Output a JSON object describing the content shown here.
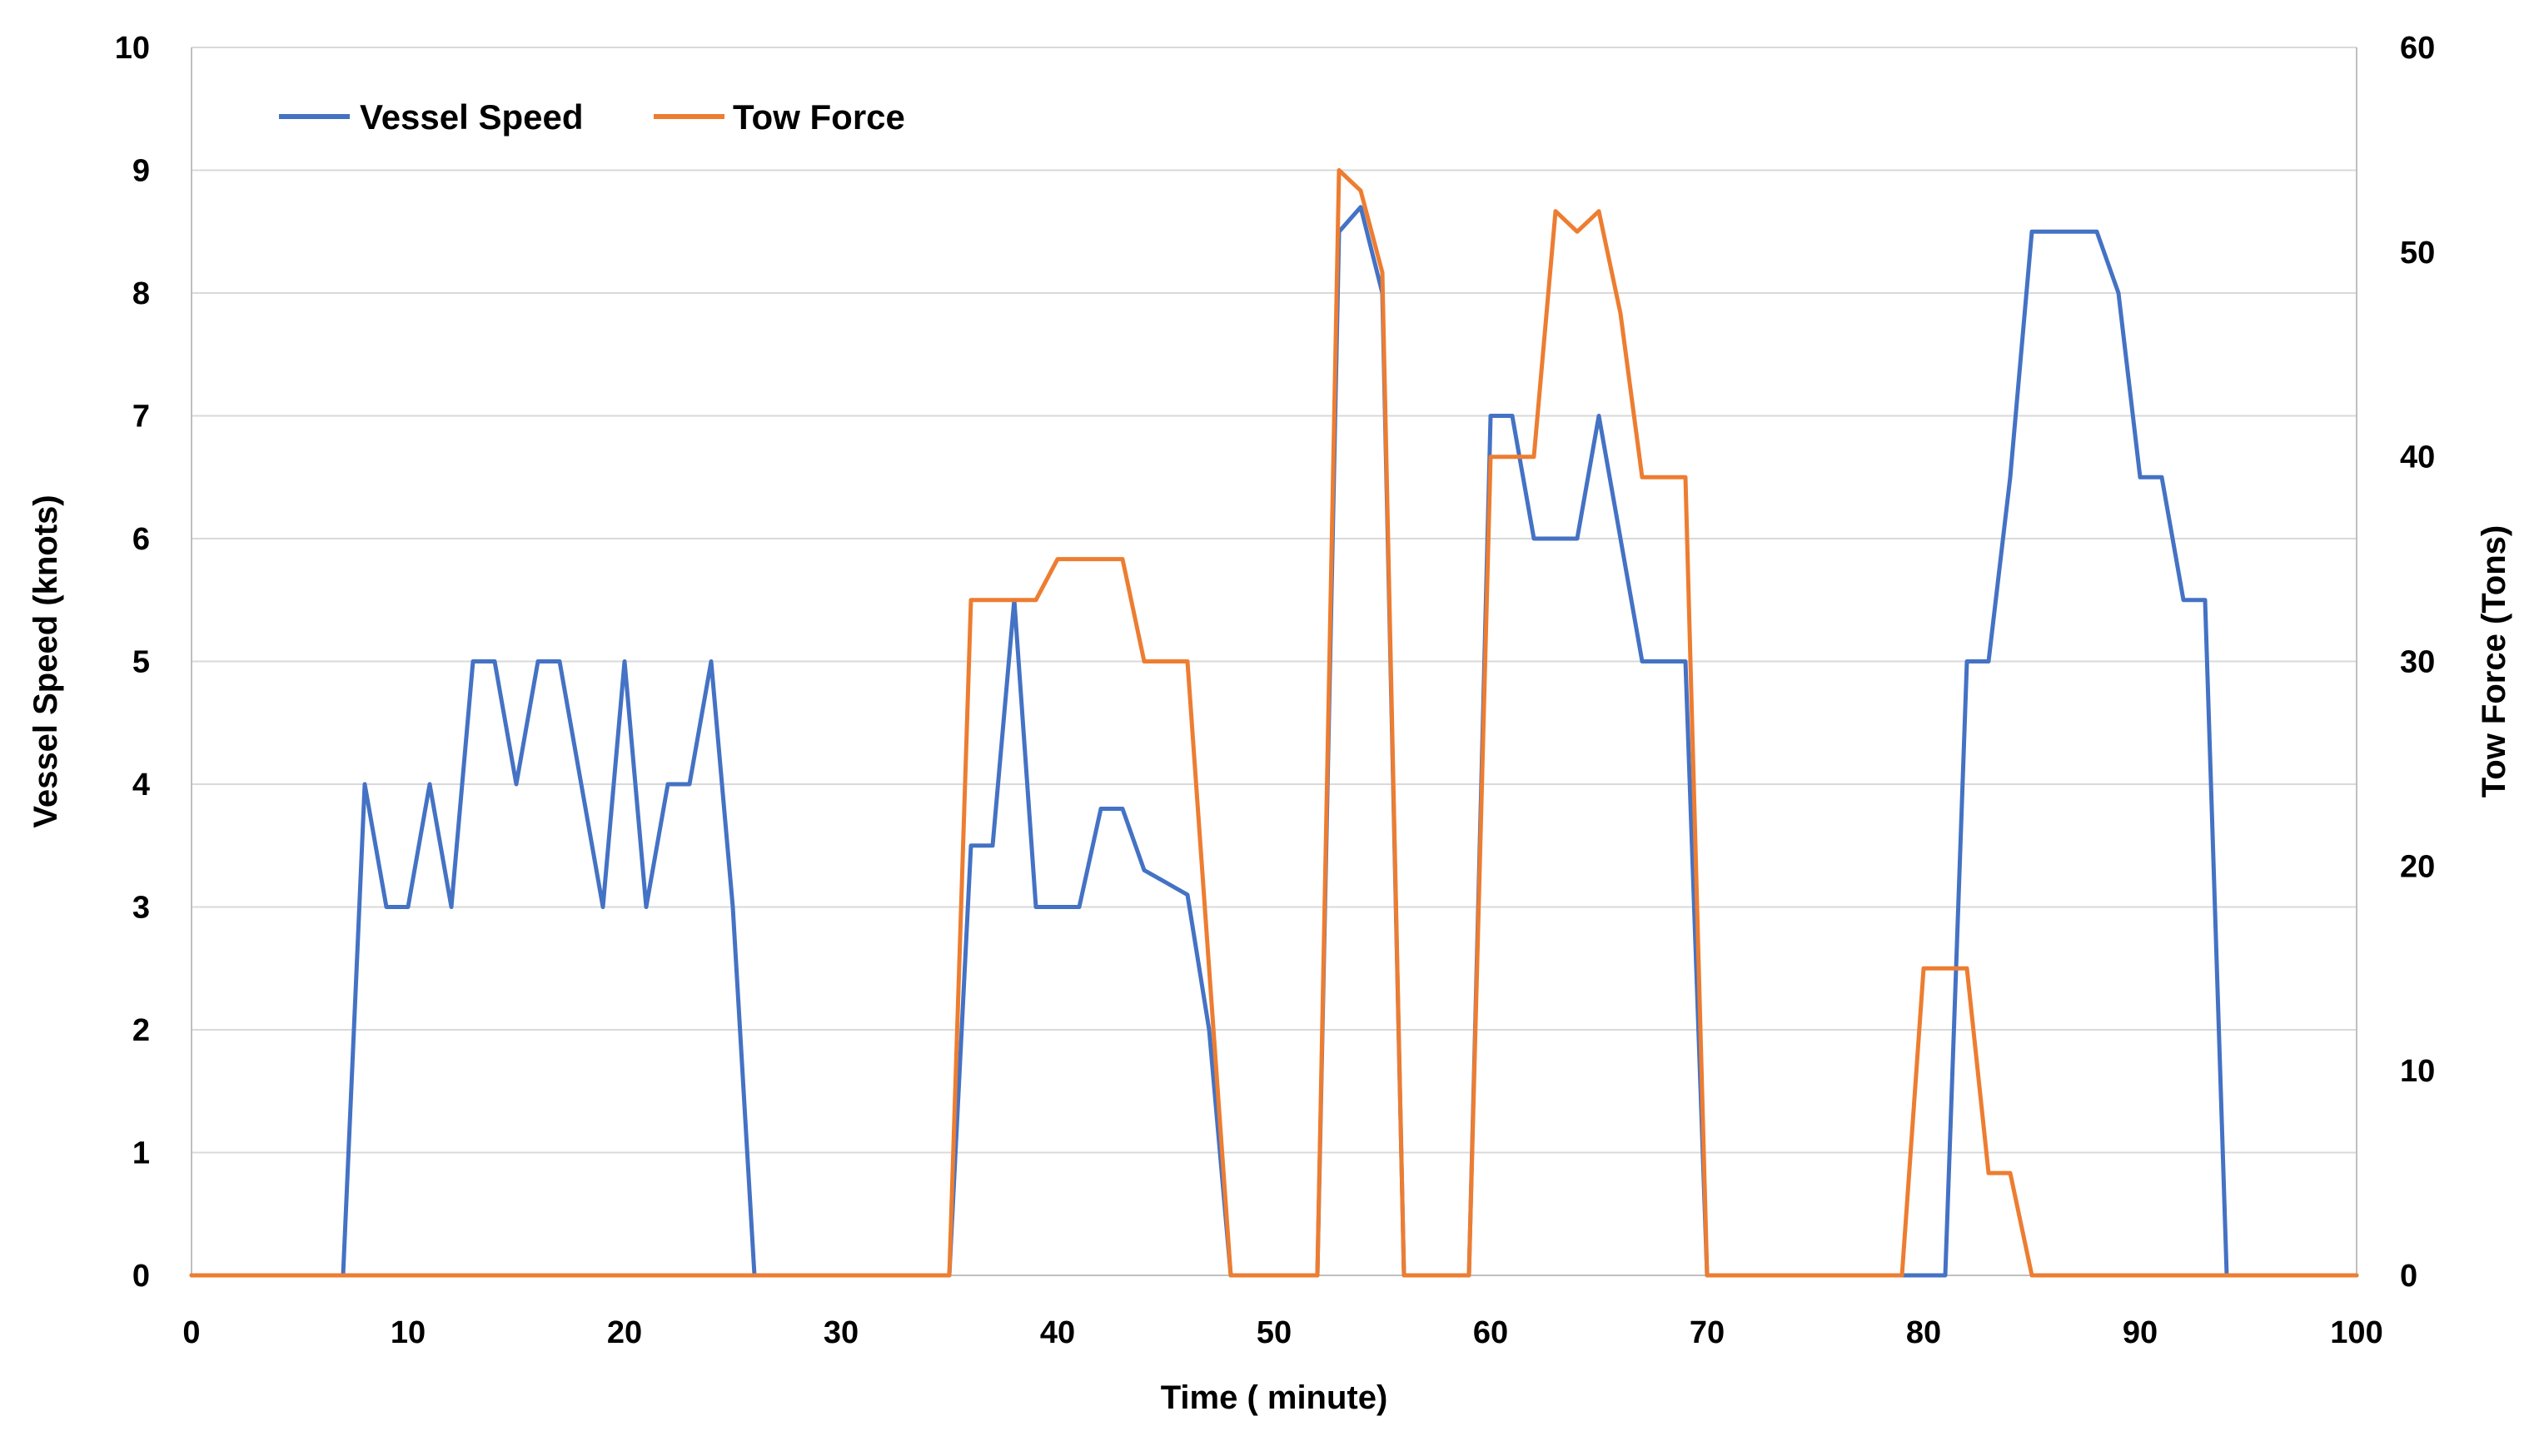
{
  "chart_data": {
    "type": "line",
    "title": "",
    "xlabel": "Time ( minute)",
    "ylabel": "Vessel Speed (knots)",
    "y2label": "Tow Force (Tons)",
    "xlim": [
      0,
      100
    ],
    "ylim": [
      0,
      10
    ],
    "y2lim": [
      0,
      60
    ],
    "x_ticks": [
      0,
      10,
      20,
      30,
      40,
      50,
      60,
      70,
      80,
      90,
      100
    ],
    "y_ticks": [
      0,
      1,
      2,
      3,
      4,
      5,
      6,
      7,
      8,
      9,
      10
    ],
    "y2_ticks": [
      0,
      10,
      20,
      30,
      40,
      50,
      60
    ],
    "grid": "horizontal",
    "legend": "top-left",
    "series": [
      {
        "name": "Vessel Speed",
        "axis": "left",
        "color": "#4472C4",
        "points": [
          [
            0,
            0
          ],
          [
            7,
            0
          ],
          [
            8,
            4
          ],
          [
            9,
            3
          ],
          [
            10,
            3
          ],
          [
            11,
            4
          ],
          [
            12,
            3
          ],
          [
            13,
            5
          ],
          [
            14,
            5
          ],
          [
            15,
            4
          ],
          [
            16,
            5
          ],
          [
            17,
            5
          ],
          [
            18,
            4
          ],
          [
            19,
            3
          ],
          [
            20,
            5
          ],
          [
            21,
            3
          ],
          [
            22,
            4
          ],
          [
            23,
            4
          ],
          [
            24,
            5
          ],
          [
            25,
            3
          ],
          [
            26,
            0
          ],
          [
            35,
            0
          ],
          [
            36,
            3.5
          ],
          [
            37,
            3.5
          ],
          [
            38,
            5.5
          ],
          [
            39,
            3
          ],
          [
            40,
            3
          ],
          [
            41,
            3
          ],
          [
            42,
            3.8
          ],
          [
            43,
            3.8
          ],
          [
            44,
            3.3
          ],
          [
            45,
            3.2
          ],
          [
            46,
            3.1
          ],
          [
            47,
            2
          ],
          [
            48,
            0
          ],
          [
            52,
            0
          ],
          [
            53,
            8.5
          ],
          [
            54,
            8.7
          ],
          [
            55,
            8
          ],
          [
            56,
            0
          ],
          [
            59,
            0
          ],
          [
            60,
            7
          ],
          [
            61,
            7
          ],
          [
            62,
            6
          ],
          [
            63,
            6
          ],
          [
            64,
            6
          ],
          [
            65,
            7
          ],
          [
            66,
            6
          ],
          [
            67,
            5
          ],
          [
            68,
            5
          ],
          [
            69,
            5
          ],
          [
            70,
            0
          ],
          [
            81,
            0
          ],
          [
            82,
            5
          ],
          [
            83,
            5
          ],
          [
            84,
            6.5
          ],
          [
            85,
            8.5
          ],
          [
            86,
            8.5
          ],
          [
            87,
            8.5
          ],
          [
            88,
            8.5
          ],
          [
            89,
            8
          ],
          [
            90,
            6.5
          ],
          [
            91,
            6.5
          ],
          [
            92,
            5.5
          ],
          [
            93,
            5.5
          ],
          [
            94,
            0
          ],
          [
            100,
            0
          ]
        ]
      },
      {
        "name": "Tow Force",
        "axis": "right",
        "color": "#ED7D31",
        "points": [
          [
            0,
            0
          ],
          [
            35,
            0
          ],
          [
            36,
            33
          ],
          [
            37,
            33
          ],
          [
            38,
            33
          ],
          [
            39,
            33
          ],
          [
            40,
            35
          ],
          [
            41,
            35
          ],
          [
            42,
            35
          ],
          [
            43,
            35
          ],
          [
            44,
            30
          ],
          [
            45,
            30
          ],
          [
            46,
            30
          ],
          [
            48,
            0
          ],
          [
            52,
            0
          ],
          [
            53,
            54
          ],
          [
            54,
            53
          ],
          [
            55,
            49
          ],
          [
            56,
            0
          ],
          [
            59,
            0
          ],
          [
            60,
            40
          ],
          [
            61,
            40
          ],
          [
            62,
            40
          ],
          [
            63,
            52
          ],
          [
            64,
            51
          ],
          [
            65,
            52
          ],
          [
            66,
            47
          ],
          [
            67,
            39
          ],
          [
            68,
            39
          ],
          [
            69,
            39
          ],
          [
            70,
            0
          ],
          [
            79,
            0
          ],
          [
            80,
            15
          ],
          [
            81,
            15
          ],
          [
            82,
            15
          ],
          [
            83,
            5
          ],
          [
            84,
            5
          ],
          [
            85,
            0
          ],
          [
            100,
            0
          ]
        ]
      }
    ]
  }
}
